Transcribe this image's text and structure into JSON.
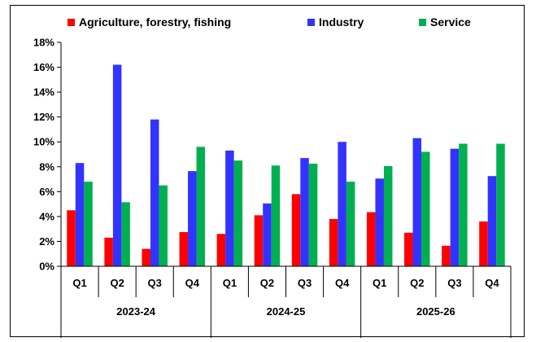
{
  "chart_data": {
    "type": "bar",
    "title": "",
    "xlabel": "",
    "ylabel": "",
    "ylim": [
      0,
      18
    ],
    "yticks": [
      0,
      2,
      4,
      6,
      8,
      10,
      12,
      14,
      16,
      18
    ],
    "ytick_suffix": "%",
    "grid": false,
    "legend_position": "top",
    "categories": [
      "Q1",
      "Q2",
      "Q3",
      "Q4",
      "Q1",
      "Q2",
      "Q3",
      "Q4",
      "Q1",
      "Q2",
      "Q3",
      "Q4"
    ],
    "groups": [
      {
        "label": "2023-24",
        "span": 4
      },
      {
        "label": "2024-25",
        "span": 4
      },
      {
        "label": "2025-26",
        "span": 4
      }
    ],
    "series": [
      {
        "name": "Agriculture, forestry, fishing",
        "color": "#ff0000",
        "values": [
          4.5,
          2.3,
          1.4,
          2.75,
          2.6,
          4.1,
          5.8,
          3.8,
          4.35,
          2.7,
          1.65,
          3.6
        ]
      },
      {
        "name": "Industry",
        "color": "#3333ff",
        "values": [
          8.3,
          16.2,
          11.8,
          7.65,
          9.3,
          5.05,
          8.7,
          10.0,
          7.05,
          10.3,
          9.45,
          7.25
        ]
      },
      {
        "name": "Service",
        "color": "#00b050",
        "values": [
          6.8,
          5.15,
          6.5,
          9.6,
          8.5,
          8.1,
          8.25,
          6.8,
          8.05,
          9.2,
          9.85,
          9.85
        ]
      }
    ]
  }
}
